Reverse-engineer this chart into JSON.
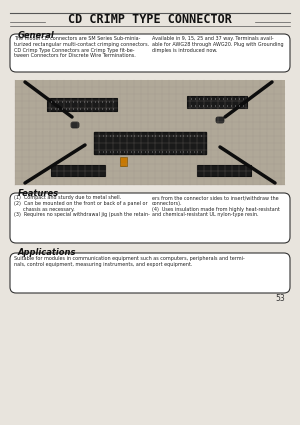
{
  "title": "CD CRIMP TYPE CONNECTOR",
  "bg_color": "#e8e4dd",
  "page_number": "53",
  "general_heading": "General",
  "general_text_left": "The model CD connectors are SM Series Sub-minia-\nturized rectangular multi-contact crimping connectors.\nCD Crimp Type Connectors are Crimp Type fit-be-\ntween Connectors for Discrete Wire Terminations.",
  "general_text_right": "Available in 9, 15, 25 and 37 way. Terminals avail-\nable for AWG28 through AWG20. Plug with Grounding\ndimples is introduced now.",
  "features_heading": "Features",
  "features_left": "(1)  Compact and sturdy due to metal shell.\n(2)  Can be mounted on the front or back of a panel or\n      chassis as necessary.\n(3)  Requires no special withdrawal jig (push the retain-",
  "features_right": "ers from the connector sides to insert/withdraw the\nconnectors).\n(4)  Uses insulation made from highly heat-resistant\nand chemical-resistant UL nylon-type resin.",
  "applications_heading": "Applications",
  "applications_text": "Suitable for modules in communication equipment such as computers, peripherals and termi-\nnals, control equipment, measuring instruments, and export equipment."
}
